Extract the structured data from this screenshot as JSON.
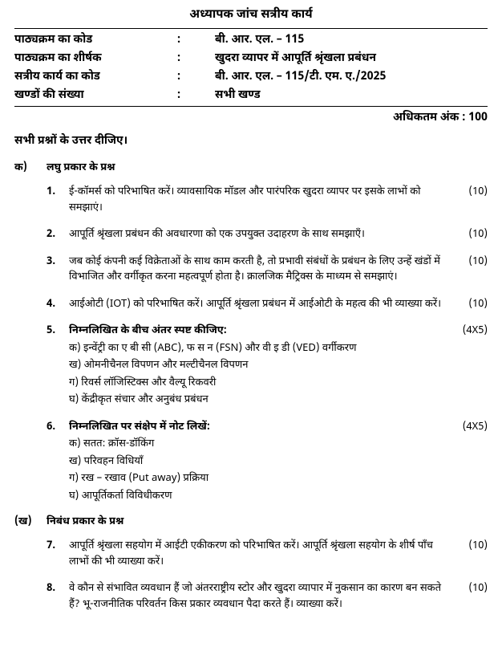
{
  "title": "अध्यापक जांच सत्रीय कार्य",
  "header": {
    "rows": [
      {
        "label": "पाठ्यक्रम का कोड",
        "value": "बी. आर. एल. – 115"
      },
      {
        "label": "पाठ्यक्रम का शीर्षक",
        "value": "खुदरा व्यापर में आपूर्ति श्रृंखला प्रबंधन"
      },
      {
        "label": "सत्रीय कार्य का कोड",
        "value": "बी. आर. एल. – 115/टी. एम. ए./2025"
      },
      {
        "label": "खण्डों की संख्या",
        "value": "सभी खण्ड"
      }
    ]
  },
  "max_marks": "अधिकतम अंक : 100",
  "instruction": "सभी प्रश्नों के उत्तर दीजिए।",
  "sections": [
    {
      "num": "क)",
      "title": "लघु प्रकार के प्रश्न",
      "questions": [
        {
          "num": "1.",
          "text": "ई-कॉमर्स को परिभाषित करें। व्यावसायिक मॉडल और पारंपरिक खुदरा व्यापर पर इसके लाभों को समझाएं।",
          "marks": "(10)"
        },
        {
          "num": "2.",
          "text": "आपूर्ति श्रृंखला प्रबंधन की अवधारणा को एक उपयुक्त उदाहरण के साथ समझाएँ।",
          "marks": "(10)"
        },
        {
          "num": "3.",
          "text": "जब कोई कंपनी कई विक्रेताओं के साथ काम करती है, तो प्रभावी संबंधों के प्रबंधन के लिए उन्हें खंडों में विभाजित और वर्गीकृत करना महत्वपूर्ण होता है। क्रालजिक मैट्रिक्स के माध्यम से समझाएं।",
          "marks": "(10)"
        },
        {
          "num": "4.",
          "text": "आईओटी (IOT) को परिभाषित करें। आपूर्ति श्रृंखला प्रबंधन में आईओटी के महत्व की भी व्याख्या करें।",
          "marks": "(10)"
        },
        {
          "num": "5.",
          "lead_bold": "निम्नलिखित के बीच अंतर स्पष्ट कीजिए:",
          "subs": [
            "क) इन्वेंट्री का ए बी सी (ABC), फ स न (FSN) और वी इ डी (VED) वर्गीकरण",
            "ख) ओमनीचैनल विपणन और मल्टीचैनल विपणन",
            "ग) रिवर्स लॉजिस्टिक्स और वैल्यू रिकवरी",
            "घ) केंद्रीकृत संचार और अनुबंध प्रबंधन"
          ],
          "marks": "(4X5)"
        },
        {
          "num": "6.",
          "lead_bold": "निम्नलिखित पर संक्षेप में नोट लिखें:",
          "subs": [
            "क) सतत: क्रॉस-डॉकिंग",
            "ख) परिवहन विधियाँ",
            "ग) रख – रखाव (Put away) प्रक्रिया",
            "घ) आपूर्तिकर्ता विविधीकरण"
          ],
          "marks": "(4X5)"
        }
      ]
    },
    {
      "num": "(ख)",
      "title": "निबंध प्रकार के प्रश्न",
      "questions": [
        {
          "num": "7.",
          "text": "आपूर्ति श्रृंखला सहयोग में आईटी एकीकरण को परिभाषित करें। आपूर्ति श्रृंखला सहयोग के शीर्ष पाँच लाभों की भी व्याख्या करें।",
          "marks": "(10)"
        },
        {
          "num": "8.",
          "text": "वे कौन से संभावित व्यवधान हैं जो अंतरराष्ट्रीय स्टोर और खुदरा व्यापार में नुकसान का कारण बन सकते हैं? भू-राजनीतिक परिवर्तन किस प्रकार व्यवधान पैदा करते हैं। व्याख्या करें।",
          "marks": "(10)"
        }
      ]
    }
  ]
}
